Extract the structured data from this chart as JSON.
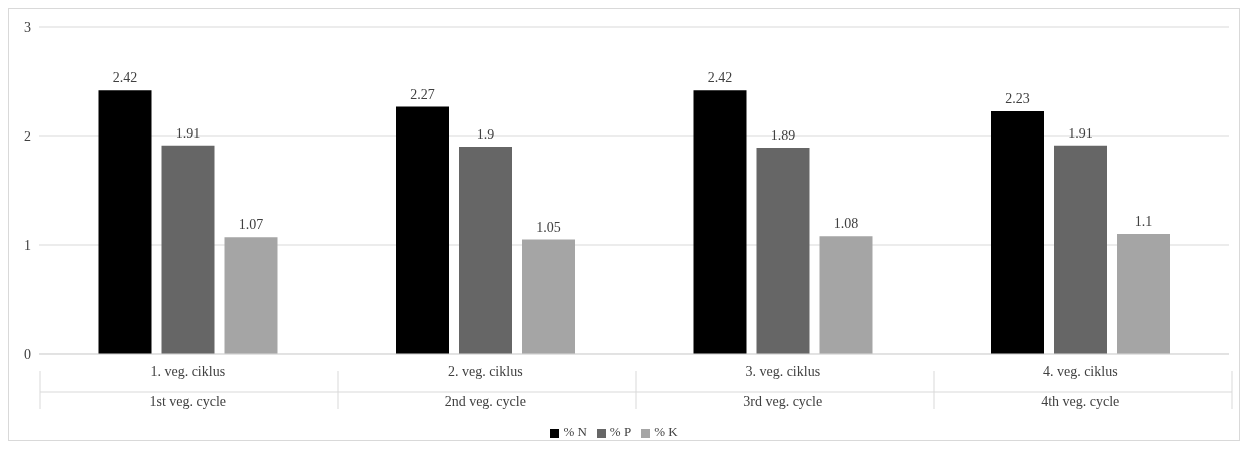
{
  "chart_data": {
    "type": "bar",
    "categories": [
      "1. veg. ciklus\n1st veg. cycle",
      "2. veg. ciklus\n2nd veg. cycle",
      "3. veg. ciklus\n3rd veg. cycle",
      "4. veg. ciklus\n4th veg. cycle"
    ],
    "series": [
      {
        "name": "% N",
        "color": "#000000",
        "values": [
          2.42,
          2.27,
          2.42,
          2.23
        ]
      },
      {
        "name": "% P",
        "color": "#666666",
        "values": [
          1.91,
          1.9,
          1.89,
          1.91
        ]
      },
      {
        "name": "% K",
        "color": "#a5a5a5",
        "values": [
          1.07,
          1.05,
          1.08,
          1.1
        ]
      }
    ],
    "ylim": [
      0,
      3
    ],
    "yticks": [
      0,
      1,
      2,
      3
    ],
    "grid": "y",
    "legend": "bottom",
    "data_labels": true
  }
}
